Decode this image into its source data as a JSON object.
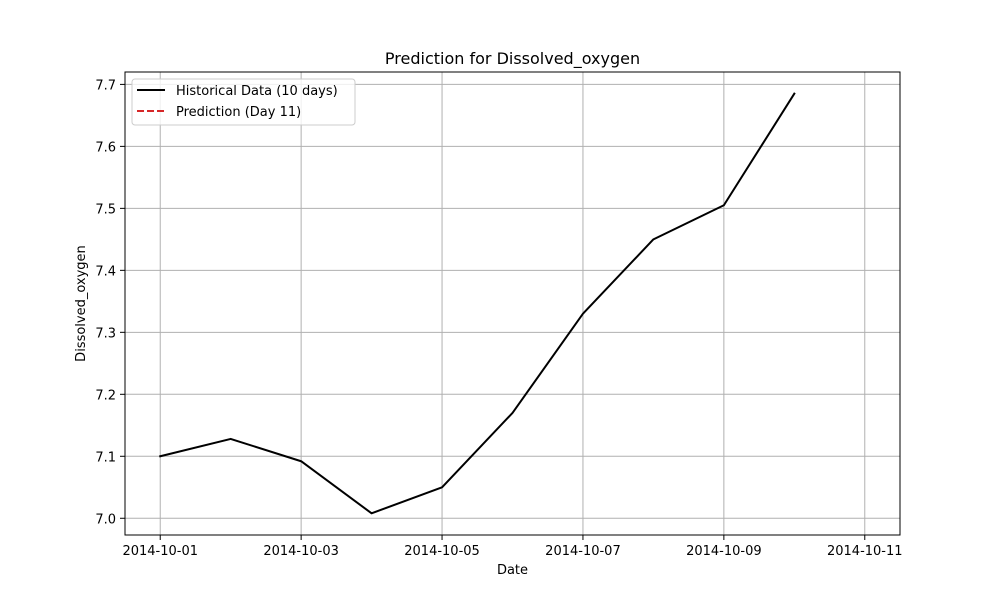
{
  "chart_data": {
    "type": "line",
    "title": "Prediction for Dissolved_oxygen",
    "xlabel": "Date",
    "ylabel": "Dissolved_oxygen",
    "x_ticks": [
      "2014-10-01",
      "2014-10-03",
      "2014-10-05",
      "2014-10-07",
      "2014-10-09",
      "2014-10-11"
    ],
    "y_ticks": [
      "7.0",
      "7.1",
      "7.2",
      "7.3",
      "7.4",
      "7.5",
      "7.6",
      "7.7"
    ],
    "xlim": [
      "2014-09-30T12:00",
      "2014-10-11T12:00"
    ],
    "ylim": [
      6.973,
      7.72
    ],
    "grid": true,
    "legend_position": "upper-left",
    "series": [
      {
        "name": "Historical Data (10 days)",
        "color": "#000000",
        "line_style": "solid",
        "x": [
          "2014-10-01",
          "2014-10-02",
          "2014-10-03",
          "2014-10-04",
          "2014-10-05",
          "2014-10-06",
          "2014-10-07",
          "2014-10-08",
          "2014-10-09",
          "2014-10-10"
        ],
        "y": [
          7.1,
          7.128,
          7.092,
          7.008,
          7.05,
          7.17,
          7.33,
          7.45,
          7.505,
          7.685
        ]
      },
      {
        "name": "Prediction (Day 11)",
        "color": "#d62728",
        "line_style": "dashed",
        "x": [],
        "y": []
      }
    ]
  }
}
